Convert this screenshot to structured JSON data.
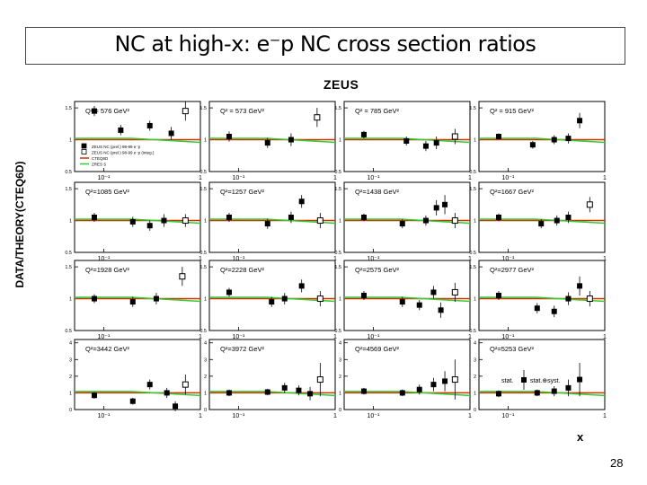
{
  "slide": {
    "title": "NC at high-x: e⁻p NC cross section ratios",
    "y_axis_label": "DATA/THEORY(CTEQ6D)",
    "experiment_label": "ZEUS",
    "x_axis_label": "x",
    "page_number": "28"
  },
  "legend": {
    "entries": [
      "ZEUS NC (prel.) 98-99 e⁻p",
      "ZEUS NC (prel.) 98-99 e⁻p (integ.)",
      "CTEQ6D",
      "ZRES S"
    ],
    "colors": {
      "cteq6d": "#cc3300",
      "zeus_s": "#33cc33"
    }
  },
  "annotation": {
    "stat_label": "stat.",
    "statsyst_label": "stat.⊕syst."
  },
  "chart_data": {
    "type": "scatter",
    "x_ticks": [
      "10⁻¹",
      "1"
    ],
    "y_ticks_rows_1_to_3": [
      "0.5",
      "1",
      "1.5"
    ],
    "y_ticks_row_4": [
      "0",
      "1",
      "2",
      "3",
      "4"
    ],
    "panels": [
      {
        "label": "Q² = 576 GeV²",
        "ylim": [
          0.5,
          1.6
        ],
        "points": [
          [
            0.08,
            1.45,
            0.08
          ],
          [
            0.15,
            1.15,
            0.08
          ],
          [
            0.3,
            1.22,
            0.08
          ],
          [
            0.5,
            1.1,
            0.1
          ]
        ],
        "open": [
          [
            0.7,
            1.45,
            0.15
          ]
        ]
      },
      {
        "label": "Q² = 573 GeV²",
        "ylim": [
          0.5,
          1.6
        ],
        "points": [
          [
            0.08,
            1.05,
            0.08
          ],
          [
            0.2,
            0.95,
            0.08
          ],
          [
            0.35,
            1.0,
            0.1
          ]
        ],
        "open": [
          [
            0.65,
            1.35,
            0.15
          ]
        ]
      },
      {
        "label": "Q² = 785 GeV²",
        "ylim": [
          0.5,
          1.6
        ],
        "points": [
          [
            0.08,
            1.08,
            0.06
          ],
          [
            0.22,
            0.98,
            0.07
          ],
          [
            0.35,
            0.9,
            0.08
          ],
          [
            0.45,
            0.95,
            0.1
          ]
        ],
        "open": [
          [
            0.7,
            1.05,
            0.12
          ]
        ]
      },
      {
        "label": "Q² = 915 GeV²",
        "ylim": [
          0.5,
          1.6
        ],
        "points": [
          [
            0.08,
            1.05,
            0.05
          ],
          [
            0.18,
            0.92,
            0.06
          ],
          [
            0.3,
            1.0,
            0.07
          ],
          [
            0.42,
            1.02,
            0.08
          ],
          [
            0.55,
            1.3,
            0.12
          ]
        ],
        "open": []
      },
      {
        "label": "Q²=1085 GeV²",
        "ylim": [
          0.5,
          1.6
        ],
        "points": [
          [
            0.08,
            1.05,
            0.07
          ],
          [
            0.2,
            0.98,
            0.08
          ],
          [
            0.3,
            0.92,
            0.08
          ],
          [
            0.42,
            1.0,
            0.1
          ]
        ],
        "open": [
          [
            0.7,
            1.0,
            0.1
          ]
        ]
      },
      {
        "label": "Q²=1257 GeV²",
        "ylim": [
          0.5,
          1.6
        ],
        "points": [
          [
            0.08,
            1.05,
            0.07
          ],
          [
            0.2,
            0.95,
            0.08
          ],
          [
            0.35,
            1.05,
            0.09
          ],
          [
            0.45,
            1.3,
            0.1
          ]
        ],
        "open": [
          [
            0.7,
            1.0,
            0.12
          ]
        ]
      },
      {
        "label": "Q²=1438 GeV²",
        "ylim": [
          0.5,
          1.6
        ],
        "points": [
          [
            0.08,
            1.05,
            0.06
          ],
          [
            0.2,
            0.95,
            0.07
          ],
          [
            0.35,
            1.0,
            0.08
          ],
          [
            0.45,
            1.2,
            0.12
          ],
          [
            0.55,
            1.25,
            0.15
          ]
        ],
        "open": [
          [
            0.7,
            1.0,
            0.12
          ]
        ]
      },
      {
        "label": "Q²=1667 GeV²",
        "ylim": [
          0.5,
          1.6
        ],
        "points": [
          [
            0.08,
            1.05,
            0.06
          ],
          [
            0.22,
            0.95,
            0.07
          ],
          [
            0.32,
            1.0,
            0.08
          ],
          [
            0.42,
            1.05,
            0.09
          ]
        ],
        "open": [
          [
            0.7,
            1.25,
            0.12
          ]
        ]
      },
      {
        "label": "Q²=1928 GeV²",
        "ylim": [
          0.5,
          1.6
        ],
        "points": [
          [
            0.08,
            1.0,
            0.07
          ],
          [
            0.2,
            0.95,
            0.08
          ],
          [
            0.35,
            1.0,
            0.09
          ]
        ],
        "open": [
          [
            0.65,
            1.35,
            0.15
          ]
        ]
      },
      {
        "label": "Q²=2228 GeV²",
        "ylim": [
          0.5,
          1.6
        ],
        "points": [
          [
            0.08,
            1.1,
            0.07
          ],
          [
            0.22,
            0.95,
            0.08
          ],
          [
            0.3,
            1.0,
            0.09
          ],
          [
            0.45,
            1.2,
            0.1
          ]
        ],
        "open": [
          [
            0.7,
            1.0,
            0.12
          ]
        ]
      },
      {
        "label": "Q²=2575 GeV²",
        "ylim": [
          0.5,
          1.6
        ],
        "points": [
          [
            0.08,
            1.05,
            0.07
          ],
          [
            0.2,
            0.95,
            0.08
          ],
          [
            0.3,
            0.9,
            0.08
          ],
          [
            0.42,
            1.1,
            0.1
          ],
          [
            0.5,
            0.82,
            0.12
          ]
        ],
        "open": [
          [
            0.7,
            1.1,
            0.15
          ]
        ]
      },
      {
        "label": "Q²=2977 GeV²",
        "ylim": [
          0.5,
          1.6
        ],
        "points": [
          [
            0.08,
            1.05,
            0.07
          ],
          [
            0.2,
            0.85,
            0.08
          ],
          [
            0.3,
            0.8,
            0.09
          ],
          [
            0.42,
            1.0,
            0.1
          ],
          [
            0.55,
            1.2,
            0.15
          ]
        ],
        "open": [
          [
            0.7,
            1.0,
            0.12
          ]
        ]
      },
      {
        "label": "Q²=3442 GeV²",
        "ylim": [
          0,
          4.2
        ],
        "points": [
          [
            0.08,
            0.85,
            0.2
          ],
          [
            0.2,
            0.5,
            0.2
          ],
          [
            0.3,
            1.5,
            0.3
          ],
          [
            0.45,
            1.0,
            0.3
          ],
          [
            0.55,
            0.2,
            0.3
          ]
        ],
        "open": [
          [
            0.7,
            1.5,
            0.6
          ]
        ]
      },
      {
        "label": "Q²=3972 GeV²",
        "ylim": [
          0,
          4.2
        ],
        "points": [
          [
            0.08,
            1.0,
            0.2
          ],
          [
            0.2,
            1.05,
            0.2
          ],
          [
            0.3,
            1.3,
            0.3
          ],
          [
            0.42,
            1.15,
            0.3
          ],
          [
            0.55,
            0.95,
            0.4
          ]
        ],
        "open": [
          [
            0.7,
            1.8,
            1.0
          ]
        ]
      },
      {
        "label": "Q²=4569 GeV²",
        "ylim": [
          0,
          4.2
        ],
        "points": [
          [
            0.08,
            1.1,
            0.2
          ],
          [
            0.2,
            1.0,
            0.2
          ],
          [
            0.3,
            1.2,
            0.3
          ],
          [
            0.42,
            1.5,
            0.4
          ],
          [
            0.55,
            1.7,
            0.6
          ]
        ],
        "open": [
          [
            0.7,
            1.8,
            1.2
          ]
        ]
      },
      {
        "label": "Q²=5253 GeV²",
        "ylim": [
          0,
          4.2
        ],
        "points": [
          [
            0.08,
            0.95,
            0.2
          ],
          [
            0.2,
            1.0,
            0.2
          ],
          [
            0.3,
            1.1,
            0.3
          ],
          [
            0.42,
            1.3,
            0.5
          ],
          [
            0.55,
            1.8,
            1.0
          ]
        ],
        "open": []
      }
    ]
  }
}
